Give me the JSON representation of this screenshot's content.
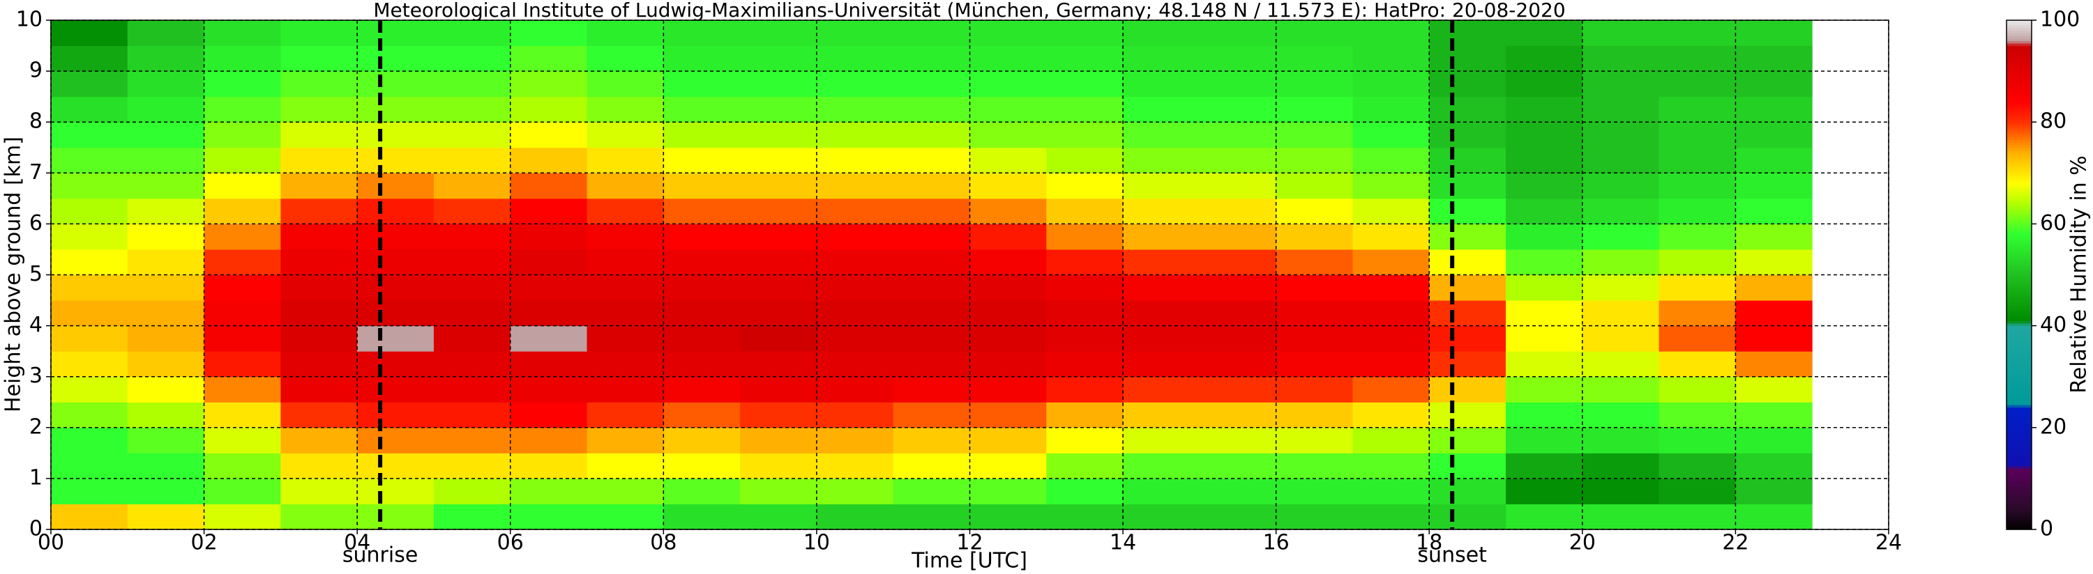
{
  "chart_data": {
    "type": "heatmap",
    "title": "Meteorological Institute of Ludwig-Maximilians-Universität (München, Germany; 48.148 N / 11.573 E):    HatPro: 20-08-2020",
    "xlabel": "Time [UTC]",
    "ylabel": "Height above ground [km]",
    "colorbar_label": "Relative Humidity in %",
    "xlim": [
      0,
      24
    ],
    "ylim": [
      0,
      10
    ],
    "clim": [
      0,
      100
    ],
    "xticks": [
      {
        "value": 0,
        "label": "00"
      },
      {
        "value": 2,
        "label": "02"
      },
      {
        "value": 4,
        "label": "04"
      },
      {
        "value": 6,
        "label": "06"
      },
      {
        "value": 8,
        "label": "08"
      },
      10,
      12,
      14,
      16,
      18,
      20,
      22,
      24
    ],
    "yticks": [
      0,
      1,
      2,
      3,
      4,
      5,
      6,
      7,
      8,
      9,
      10
    ],
    "cticks": [
      0,
      20,
      40,
      60,
      80,
      100
    ],
    "grid": true,
    "colorscale": [
      [
        0,
        "#000000"
      ],
      [
        4,
        "#2a0a2a"
      ],
      [
        12,
        "#5a005a"
      ],
      [
        12.5,
        "#1010b0"
      ],
      [
        24,
        "#0020c8"
      ],
      [
        24.5,
        "#009a9a"
      ],
      [
        40,
        "#20a8a0"
      ],
      [
        41,
        "#008a00"
      ],
      [
        50,
        "#20c020"
      ],
      [
        58,
        "#30ff30"
      ],
      [
        64,
        "#b0ff00"
      ],
      [
        68,
        "#ffff00"
      ],
      [
        74,
        "#ffb000"
      ],
      [
        80,
        "#ff3000"
      ],
      [
        84,
        "#ff0000"
      ],
      [
        95,
        "#cc0000"
      ],
      [
        96,
        "#c0a0a0"
      ],
      [
        100,
        "#e8e8e8"
      ]
    ],
    "annotations": [
      {
        "text": "sunrise",
        "x": 4.3
      },
      {
        "text": "sunset",
        "x": 18.3
      }
    ],
    "x_edges": [
      0,
      1,
      2,
      3,
      4,
      5,
      6,
      7,
      8,
      9,
      10,
      11,
      12,
      13,
      14,
      15,
      16,
      17,
      18,
      19,
      20,
      21,
      22,
      23
    ],
    "y_edges": [
      0,
      0.5,
      1,
      1.5,
      2,
      2.5,
      3,
      3.5,
      4,
      4.5,
      5,
      5.5,
      6,
      6.5,
      7,
      7.5,
      8,
      8.5,
      9,
      9.5,
      10
    ],
    "z": [
      [
        72,
        58,
        58,
        58,
        62,
        66,
        70,
        72,
        74,
        72,
        68,
        66,
        64,
        62,
        60,
        58,
        54,
        50,
        46,
        42
      ],
      [
        70,
        58,
        58,
        60,
        64,
        68,
        72,
        74,
        74,
        72,
        70,
        68,
        66,
        62,
        60,
        58,
        56,
        54,
        52,
        50
      ],
      [
        66,
        60,
        62,
        66,
        70,
        76,
        82,
        86,
        86,
        84,
        80,
        76,
        72,
        68,
        64,
        62,
        60,
        58,
        56,
        54
      ],
      [
        62,
        66,
        70,
        74,
        80,
        88,
        90,
        92,
        92,
        90,
        88,
        86,
        80,
        74,
        70,
        66,
        62,
        60,
        58,
        56
      ],
      [
        62,
        66,
        70,
        76,
        82,
        88,
        90,
        96,
        92,
        90,
        88,
        86,
        82,
        76,
        70,
        66,
        62,
        60,
        58,
        56
      ],
      [
        58,
        64,
        70,
        76,
        82,
        88,
        90,
        92,
        92,
        90,
        88,
        86,
        80,
        74,
        70,
        66,
        62,
        60,
        58,
        56
      ],
      [
        58,
        62,
        70,
        76,
        84,
        88,
        90,
        96,
        92,
        90,
        90,
        88,
        84,
        78,
        72,
        68,
        64,
        62,
        60,
        58
      ],
      [
        58,
        62,
        68,
        74,
        80,
        88,
        90,
        92,
        92,
        90,
        88,
        86,
        80,
        74,
        70,
        66,
        62,
        60,
        58,
        56
      ],
      [
        54,
        60,
        68,
        72,
        78,
        86,
        90,
        92,
        92,
        90,
        88,
        84,
        78,
        72,
        68,
        64,
        60,
        58,
        56,
        55
      ],
      [
        54,
        62,
        70,
        74,
        80,
        88,
        90,
        94,
        92,
        90,
        88,
        84,
        78,
        72,
        68,
        64,
        60,
        58,
        56,
        55
      ],
      [
        52,
        62,
        70,
        74,
        80,
        88,
        90,
        92,
        92,
        90,
        88,
        84,
        78,
        72,
        68,
        64,
        60,
        58,
        56,
        55
      ],
      [
        52,
        60,
        68,
        72,
        78,
        86,
        90,
        92,
        92,
        90,
        88,
        84,
        78,
        72,
        68,
        64,
        60,
        58,
        56,
        55
      ],
      [
        52,
        60,
        68,
        72,
        78,
        86,
        90,
        92,
        92,
        90,
        86,
        82,
        76,
        70,
        66,
        62,
        60,
        58,
        56,
        55
      ],
      [
        52,
        58,
        62,
        68,
        74,
        82,
        88,
        90,
        90,
        88,
        82,
        76,
        72,
        68,
        64,
        62,
        60,
        58,
        56,
        55
      ],
      [
        52,
        56,
        60,
        66,
        72,
        80,
        88,
        90,
        90,
        86,
        80,
        74,
        70,
        66,
        62,
        60,
        58,
        56,
        55,
        54
      ],
      [
        52,
        56,
        60,
        66,
        72,
        80,
        88,
        90,
        90,
        86,
        80,
        74,
        70,
        66,
        62,
        60,
        58,
        56,
        55,
        54
      ],
      [
        52,
        56,
        60,
        66,
        72,
        80,
        86,
        88,
        88,
        84,
        78,
        72,
        68,
        64,
        62,
        60,
        58,
        56,
        55,
        54
      ],
      [
        52,
        56,
        60,
        64,
        70,
        78,
        86,
        88,
        88,
        84,
        76,
        70,
        66,
        62,
        60,
        58,
        56,
        55,
        54,
        54
      ],
      [
        52,
        54,
        58,
        62,
        66,
        72,
        80,
        82,
        80,
        74,
        68,
        62,
        58,
        54,
        52,
        50,
        50,
        48,
        48,
        48
      ],
      [
        55,
        42,
        46,
        55,
        58,
        62,
        66,
        68,
        68,
        64,
        60,
        56,
        52,
        50,
        48,
        48,
        48,
        46,
        46,
        48
      ],
      [
        55,
        42,
        44,
        55,
        58,
        62,
        66,
        70,
        70,
        66,
        62,
        58,
        54,
        52,
        50,
        50,
        50,
        50,
        50,
        52
      ],
      [
        55,
        44,
        48,
        56,
        60,
        64,
        70,
        78,
        76,
        70,
        64,
        60,
        56,
        54,
        52,
        52,
        52,
        50,
        50,
        52
      ],
      [
        55,
        50,
        52,
        56,
        60,
        66,
        76,
        84,
        84,
        74,
        66,
        62,
        58,
        56,
        54,
        52,
        52,
        50,
        50,
        52
      ]
    ]
  }
}
